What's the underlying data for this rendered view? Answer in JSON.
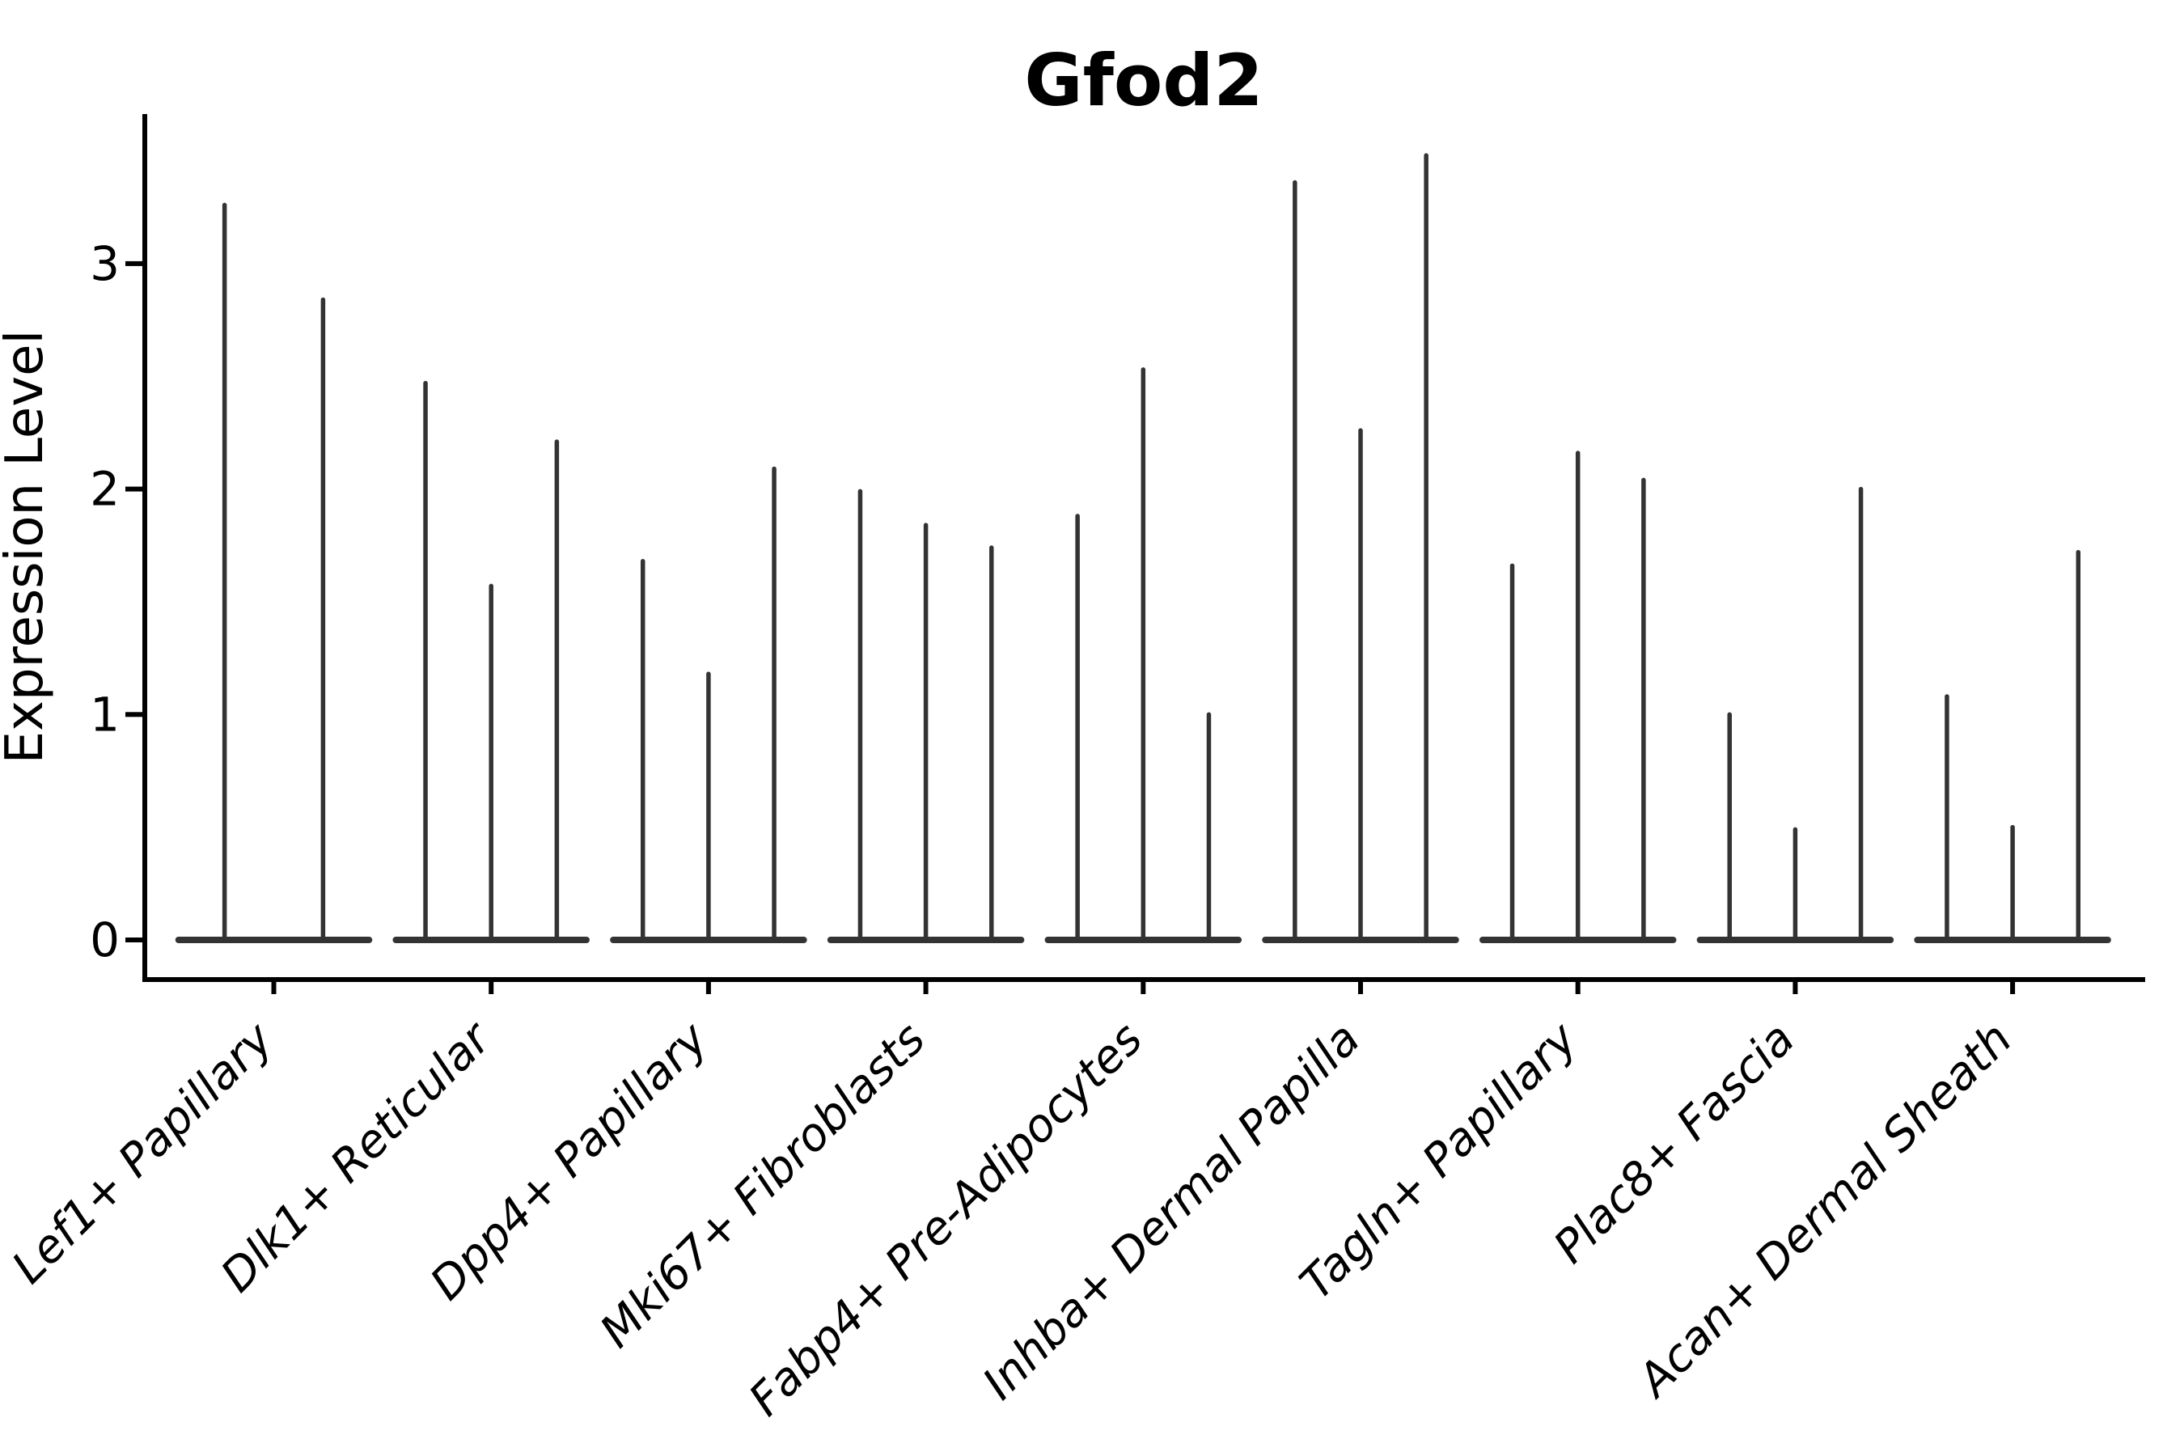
{
  "chart_data": {
    "type": "violin",
    "title": "Gfod2",
    "ylabel": "Expression Level",
    "xlabel": "",
    "yticks": [
      0,
      1,
      2,
      3
    ],
    "ylim": [
      -0.18,
      3.67
    ],
    "grid": false,
    "legend": null,
    "shape_note": "zero-inflated violins: wide flat mass at 0 with a single thin spike up to the maximum expression value; violins within a category share one baseline",
    "style": {
      "violin_color": "#333333",
      "axis_color": "#000000",
      "text_color": "#000000",
      "background": "#ffffff"
    },
    "categories": [
      "Lef1+ Papillary",
      "Dlk1+ Reticular",
      "Dpp4+ Papillary",
      "Mki67+ Fibroblasts",
      "Fabp4+ Pre-Adipocytes",
      "Inhba+ Dermal Papilla",
      "Tagln+ Papillary",
      "Plac8+ Fascia",
      "Acan+ Dermal Sheath"
    ],
    "groups": [
      {
        "category": "Lef1+ Papillary",
        "violin_maxima": [
          3.27,
          2.85
        ]
      },
      {
        "category": "Dlk1+ Reticular",
        "violin_maxima": [
          2.48,
          1.58,
          2.22
        ]
      },
      {
        "category": "Dpp4+ Papillary",
        "violin_maxima": [
          1.69,
          1.19,
          2.1
        ]
      },
      {
        "category": "Mki67+ Fibroblasts",
        "violin_maxima": [
          2.0,
          1.85,
          1.75
        ]
      },
      {
        "category": "Fabp4+ Pre-Adipocytes",
        "violin_maxima": [
          1.89,
          2.54,
          1.01
        ]
      },
      {
        "category": "Inhba+ Dermal Papilla",
        "violin_maxima": [
          3.37,
          2.27,
          3.49
        ]
      },
      {
        "category": "Tagln+ Papillary",
        "violin_maxima": [
          1.67,
          2.17,
          2.05
        ]
      },
      {
        "category": "Plac8+ Fascia",
        "violin_maxima": [
          1.01,
          0.5,
          2.01
        ]
      },
      {
        "category": "Acan+ Dermal Sheath",
        "violin_maxima": [
          1.09,
          0.51,
          1.73
        ]
      }
    ]
  }
}
